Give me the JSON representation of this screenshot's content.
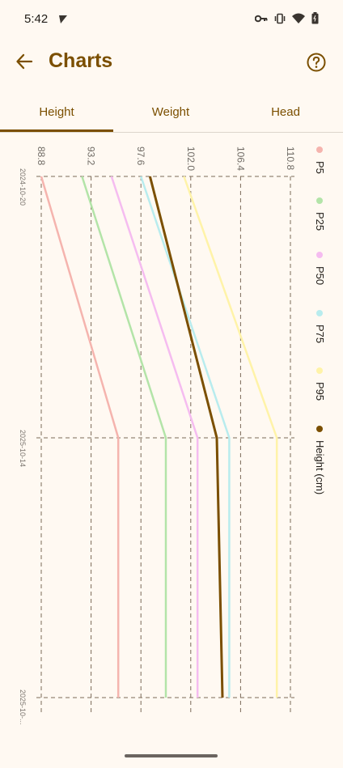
{
  "status_bar": {
    "time": "5:42",
    "left_icon": "send-check-icon",
    "icons": [
      "key-icon",
      "vibrate-icon",
      "wifi-icon",
      "battery-icon"
    ]
  },
  "app_bar": {
    "title": "Charts",
    "back_icon": "arrow-left-icon",
    "help_icon": "help-circle-icon"
  },
  "tabs": [
    {
      "label": "Height",
      "selected": true
    },
    {
      "label": "Weight",
      "selected": false
    },
    {
      "label": "Head",
      "selected": false
    }
  ],
  "colors": {
    "accent": "#7b4f00",
    "background": "#FFF9F2",
    "grid": "#7b6a58"
  },
  "chart_data": {
    "type": "line",
    "orientation": "rotated-90",
    "x_ticks": [
      "88.8",
      "93.2",
      "97.6",
      "102.0",
      "106.4",
      "110.8"
    ],
    "xlim": [
      88.8,
      110.8
    ],
    "date_ticks": [
      "2024-10-20",
      "2025-10-14",
      "2025-10-..."
    ],
    "grid": true,
    "legend_position": "right",
    "series": [
      {
        "name": "P5",
        "color": "#F5B4AE",
        "values": [
          88.8,
          95.6,
          95.6
        ]
      },
      {
        "name": "P25",
        "color": "#B3E4A8",
        "values": [
          92.4,
          99.8,
          99.8
        ]
      },
      {
        "name": "P50",
        "color": "#F5BCF0",
        "values": [
          95.0,
          102.6,
          102.6
        ]
      },
      {
        "name": "P75",
        "color": "#B8ECEE",
        "values": [
          97.6,
          105.4,
          105.4
        ]
      },
      {
        "name": "P95",
        "color": "#FFF3A8",
        "values": [
          101.4,
          109.6,
          109.6
        ]
      },
      {
        "name": "Height (cm)",
        "color": "#7b4f00",
        "values": [
          98.4,
          104.3,
          104.8
        ]
      }
    ]
  }
}
